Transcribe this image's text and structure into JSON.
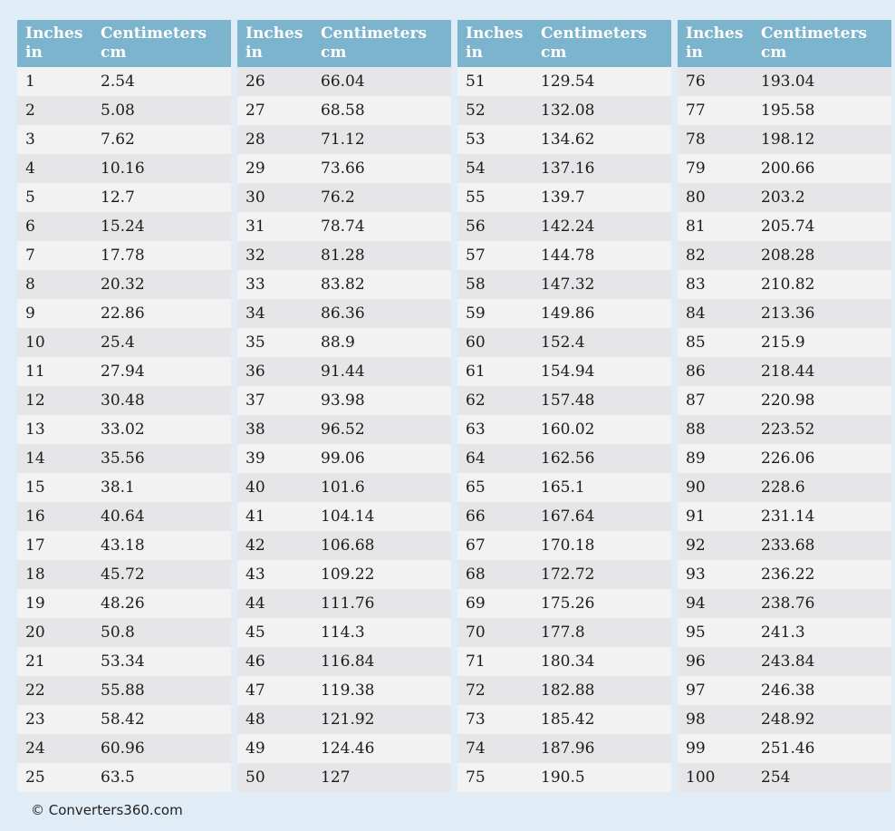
{
  "colors": {
    "page_bg": "#e1edf6",
    "header_bg": "#7cb4cd",
    "header_text": "#ffffff",
    "row_odd": "#f2f2f2",
    "row_even": "#e6e6e9",
    "cell_text": "#1b1b1b",
    "footer_text": "#1f1f1f"
  },
  "headers": {
    "col1": "Inches",
    "col1_unit": "in",
    "col2": "Centimeters",
    "col2_unit": "cm"
  },
  "footer": {
    "copyright": "© Converters360.com"
  },
  "tables": [
    {
      "rows": [
        [
          "1",
          "2.54"
        ],
        [
          "2",
          "5.08"
        ],
        [
          "3",
          "7.62"
        ],
        [
          "4",
          "10.16"
        ],
        [
          "5",
          "12.7"
        ],
        [
          "6",
          "15.24"
        ],
        [
          "7",
          "17.78"
        ],
        [
          "8",
          "20.32"
        ],
        [
          "9",
          "22.86"
        ],
        [
          "10",
          "25.4"
        ],
        [
          "11",
          "27.94"
        ],
        [
          "12",
          "30.48"
        ],
        [
          "13",
          "33.02"
        ],
        [
          "14",
          "35.56"
        ],
        [
          "15",
          "38.1"
        ],
        [
          "16",
          "40.64"
        ],
        [
          "17",
          "43.18"
        ],
        [
          "18",
          "45.72"
        ],
        [
          "19",
          "48.26"
        ],
        [
          "20",
          "50.8"
        ],
        [
          "21",
          "53.34"
        ],
        [
          "22",
          "55.88"
        ],
        [
          "23",
          "58.42"
        ],
        [
          "24",
          "60.96"
        ],
        [
          "25",
          "63.5"
        ]
      ]
    },
    {
      "rows": [
        [
          "26",
          "66.04"
        ],
        [
          "27",
          "68.58"
        ],
        [
          "28",
          "71.12"
        ],
        [
          "29",
          "73.66"
        ],
        [
          "30",
          "76.2"
        ],
        [
          "31",
          "78.74"
        ],
        [
          "32",
          "81.28"
        ],
        [
          "33",
          "83.82"
        ],
        [
          "34",
          "86.36"
        ],
        [
          "35",
          "88.9"
        ],
        [
          "36",
          "91.44"
        ],
        [
          "37",
          "93.98"
        ],
        [
          "38",
          "96.52"
        ],
        [
          "39",
          "99.06"
        ],
        [
          "40",
          "101.6"
        ],
        [
          "41",
          "104.14"
        ],
        [
          "42",
          "106.68"
        ],
        [
          "43",
          "109.22"
        ],
        [
          "44",
          "111.76"
        ],
        [
          "45",
          "114.3"
        ],
        [
          "46",
          "116.84"
        ],
        [
          "47",
          "119.38"
        ],
        [
          "48",
          "121.92"
        ],
        [
          "49",
          "124.46"
        ],
        [
          "50",
          "127"
        ]
      ]
    },
    {
      "rows": [
        [
          "51",
          "129.54"
        ],
        [
          "52",
          "132.08"
        ],
        [
          "53",
          "134.62"
        ],
        [
          "54",
          "137.16"
        ],
        [
          "55",
          "139.7"
        ],
        [
          "56",
          "142.24"
        ],
        [
          "57",
          "144.78"
        ],
        [
          "58",
          "147.32"
        ],
        [
          "59",
          "149.86"
        ],
        [
          "60",
          "152.4"
        ],
        [
          "61",
          "154.94"
        ],
        [
          "62",
          "157.48"
        ],
        [
          "63",
          "160.02"
        ],
        [
          "64",
          "162.56"
        ],
        [
          "65",
          "165.1"
        ],
        [
          "66",
          "167.64"
        ],
        [
          "67",
          "170.18"
        ],
        [
          "68",
          "172.72"
        ],
        [
          "69",
          "175.26"
        ],
        [
          "70",
          "177.8"
        ],
        [
          "71",
          "180.34"
        ],
        [
          "72",
          "182.88"
        ],
        [
          "73",
          "185.42"
        ],
        [
          "74",
          "187.96"
        ],
        [
          "75",
          "190.5"
        ]
      ]
    },
    {
      "rows": [
        [
          "76",
          "193.04"
        ],
        [
          "77",
          "195.58"
        ],
        [
          "78",
          "198.12"
        ],
        [
          "79",
          "200.66"
        ],
        [
          "80",
          "203.2"
        ],
        [
          "81",
          "205.74"
        ],
        [
          "82",
          "208.28"
        ],
        [
          "83",
          "210.82"
        ],
        [
          "84",
          "213.36"
        ],
        [
          "85",
          "215.9"
        ],
        [
          "86",
          "218.44"
        ],
        [
          "87",
          "220.98"
        ],
        [
          "88",
          "223.52"
        ],
        [
          "89",
          "226.06"
        ],
        [
          "90",
          "228.6"
        ],
        [
          "91",
          "231.14"
        ],
        [
          "92",
          "233.68"
        ],
        [
          "93",
          "236.22"
        ],
        [
          "94",
          "238.76"
        ],
        [
          "95",
          "241.3"
        ],
        [
          "96",
          "243.84"
        ],
        [
          "97",
          "246.38"
        ],
        [
          "98",
          "248.92"
        ],
        [
          "99",
          "251.46"
        ],
        [
          "100",
          "254"
        ]
      ]
    }
  ]
}
